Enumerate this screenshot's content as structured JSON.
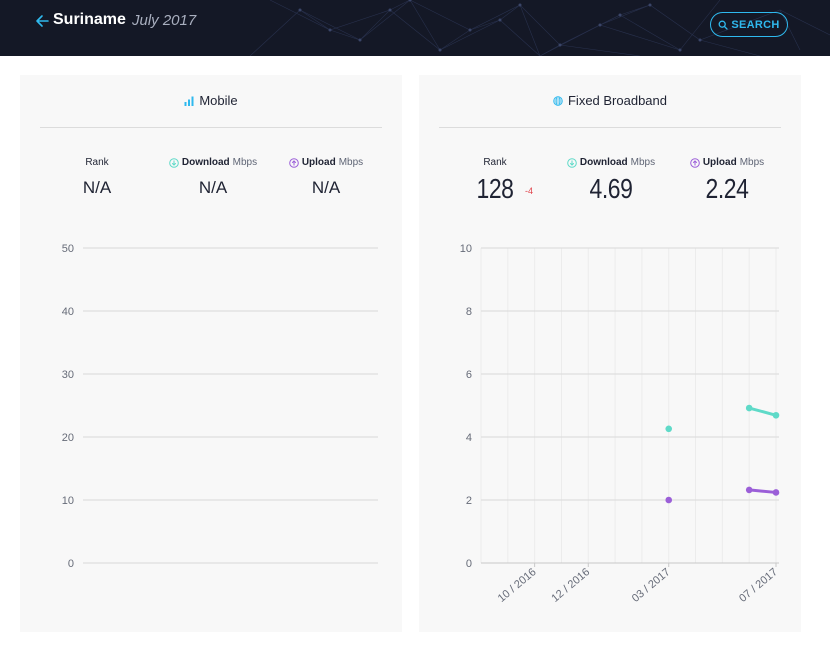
{
  "header": {
    "country": "Suriname",
    "date": "July 2017",
    "search_label": "SEARCH"
  },
  "mobile": {
    "title": "Mobile",
    "rank_label": "Rank",
    "download_label": "Download",
    "upload_label": "Upload",
    "unit": "Mbps",
    "rank": "N/A",
    "download": "N/A",
    "upload": "N/A",
    "y_ticks": [
      "50",
      "40",
      "30",
      "20",
      "10",
      "0"
    ]
  },
  "fixed": {
    "title": "Fixed Broadband",
    "rank_label": "Rank",
    "download_label": "Download",
    "upload_label": "Upload",
    "unit": "Mbps",
    "rank": "128",
    "rank_change": "-4",
    "download": "4.69",
    "upload": "2.24"
  },
  "colors": {
    "download": "#5fdac8",
    "upload": "#9b5fd8",
    "accent": "#2fb9ee",
    "rank_change": "#e0434b"
  },
  "chart_data": [
    {
      "type": "line",
      "title": "",
      "ylim": [
        0,
        50
      ],
      "y_ticks": [
        0,
        10,
        20,
        30,
        40,
        50
      ],
      "series": []
    },
    {
      "type": "line",
      "title": "",
      "ylim": [
        0,
        10
      ],
      "y_ticks": [
        0,
        2,
        4,
        6,
        8,
        10
      ],
      "x_tick_labels": [
        "10 / 2016",
        "12 / 2016",
        "03 / 2017",
        "07 / 2017"
      ],
      "grid": true,
      "series": [
        {
          "name": "Download",
          "color": "#5fdac8",
          "points": [
            [
              "2017-03",
              4.26
            ],
            [
              "2017-06",
              4.92
            ],
            [
              "2017-07",
              4.69
            ]
          ]
        },
        {
          "name": "Upload",
          "color": "#9b5fd8",
          "points": [
            [
              "2017-03",
              2.0
            ],
            [
              "2017-06",
              2.32
            ],
            [
              "2017-07",
              2.24
            ]
          ]
        }
      ]
    }
  ]
}
